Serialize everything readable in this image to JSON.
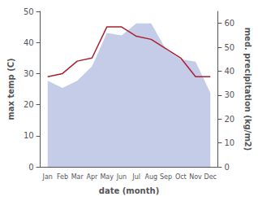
{
  "chart_data": {
    "type": "line",
    "xlabel": "date (month)",
    "ylabel": "max temp (C)",
    "y2label": "med. precipitation (kg/m2)",
    "categories": [
      "Jan",
      "Feb",
      "Mar",
      "Apr",
      "May",
      "Jun",
      "Jul",
      "Aug",
      "Sep",
      "Oct",
      "Nov",
      "Dec"
    ],
    "series": [
      {
        "type": "area",
        "axis": "y2",
        "color": "#c5cce8",
        "values": [
          36,
          33,
          36,
          42,
          56,
          55,
          60,
          60,
          49,
          45,
          44,
          31
        ]
      },
      {
        "type": "line",
        "color": "#aa2030",
        "values": [
          29,
          30,
          34,
          35,
          45,
          45,
          42,
          41,
          38,
          35,
          29,
          29
        ]
      }
    ],
    "ylim": [
      0,
      50
    ],
    "yticks": [
      0,
      10,
      20,
      30,
      40,
      50
    ],
    "y2lim": [
      0,
      65
    ],
    "y2ticks": [
      0,
      10,
      20,
      30,
      40,
      50,
      60
    ],
    "grid": false
  }
}
